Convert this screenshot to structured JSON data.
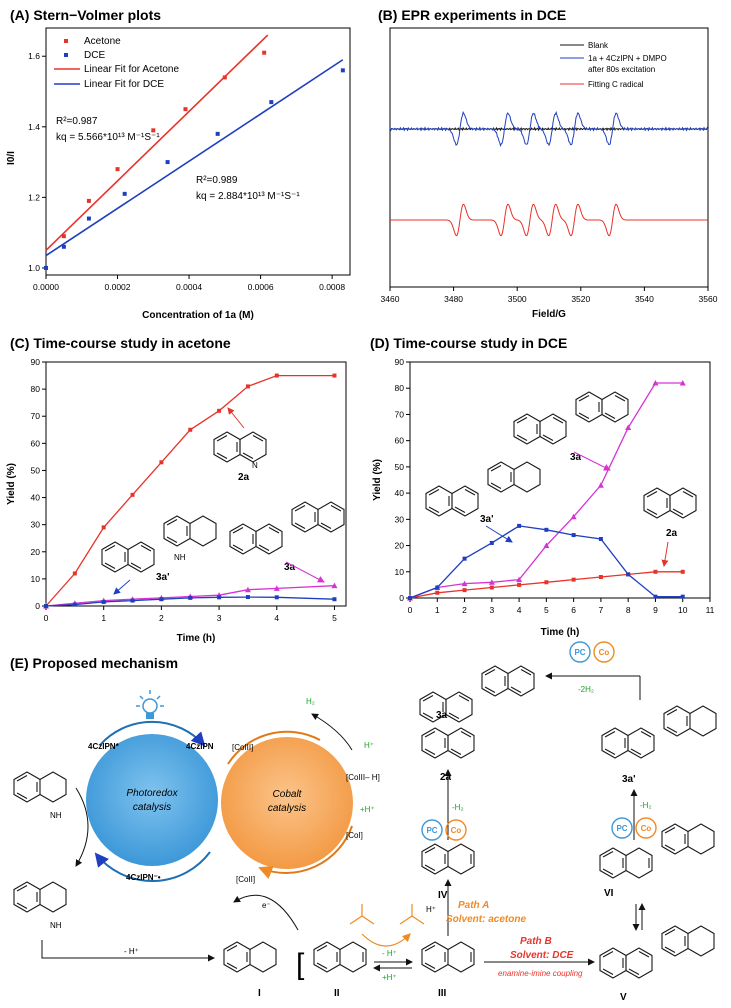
{
  "panels": {
    "a": {
      "title": "(A) Stern−Volmer plots"
    },
    "b": {
      "title": "(B) EPR experiments in DCE"
    },
    "c": {
      "title": "(C) Time-course study in acetone"
    },
    "d": {
      "title": "(D) Time-course study in DCE"
    },
    "e": {
      "title": "(E) Proposed mechanism"
    }
  },
  "chart_data": [
    {
      "id": "A",
      "type": "scatter",
      "xlabel": "Concentration of 1a (M)",
      "ylabel": "I0/I",
      "xlim": [
        0,
        0.00085
      ],
      "ylim": [
        0.98,
        1.68
      ],
      "xticks": [
        "0.0000",
        "0.0002",
        "0.0004",
        "0.0006",
        "0.0008"
      ],
      "yticks": [
        "1.0",
        "1.2",
        "1.4",
        "1.6"
      ],
      "legend": [
        "Acetone",
        "DCE",
        "Linear Fit for Acetone",
        "Linear Fit for DCE"
      ],
      "series": [
        {
          "name": "Acetone",
          "color": "#e8332b",
          "x": [
            0,
            5e-05,
            0.00012,
            0.0002,
            0.0003,
            0.00039,
            0.0005,
            0.00061
          ],
          "y": [
            1.0,
            1.09,
            1.19,
            1.28,
            1.39,
            1.45,
            1.54,
            1.61
          ]
        },
        {
          "name": "DCE",
          "color": "#1f3fbf",
          "x": [
            0,
            5e-05,
            0.00012,
            0.00022,
            0.00034,
            0.00048,
            0.00063,
            0.00083
          ],
          "y": [
            1.0,
            1.06,
            1.14,
            1.21,
            1.3,
            1.38,
            1.47,
            1.56
          ]
        }
      ],
      "fits": [
        {
          "name": "Linear Fit for Acetone",
          "color": "#e8332b",
          "x": [
            0,
            0.00062
          ],
          "y": [
            1.05,
            1.66
          ]
        },
        {
          "name": "Linear Fit for DCE",
          "color": "#1f3fbf",
          "x": [
            0,
            0.00083
          ],
          "y": [
            1.035,
            1.59
          ]
        }
      ],
      "annotations": {
        "acetone_r2": "R²=0.987",
        "acetone_kq": "kq = 5.566*10¹³ M⁻¹S⁻¹",
        "dce_r2": "R²=0.989",
        "dce_kq": "kq = 2.884*10¹³ M⁻¹S⁻¹"
      }
    },
    {
      "id": "B",
      "type": "line",
      "xlabel": "Field/G",
      "xlim": [
        3460,
        3560
      ],
      "xticks": [
        "3460",
        "3480",
        "3500",
        "3520",
        "3540",
        "3560"
      ],
      "legend": [
        "Blank",
        "1a + 4CzIPN + DMPO",
        "after 80s excitation",
        "Fitting C radical"
      ],
      "peak_fields": [
        3482,
        3496,
        3504,
        3511,
        3518,
        3530
      ],
      "series": [
        {
          "name": "Blank",
          "color": "#111111"
        },
        {
          "name": "1a + 4CzIPN + DMPO",
          "color": "#1f3fbf"
        },
        {
          "name": "Fitting C radical",
          "color": "#e8332b"
        }
      ]
    },
    {
      "id": "C",
      "type": "line",
      "xlabel": "Time (h)",
      "ylabel": "Yield (%)",
      "xlim": [
        0,
        5.2
      ],
      "ylim": [
        0,
        90
      ],
      "xticks": [
        "0",
        "1",
        "2",
        "3",
        "4",
        "5"
      ],
      "yticks": [
        "0",
        "10",
        "20",
        "30",
        "40",
        "50",
        "60",
        "70",
        "80",
        "90"
      ],
      "x": [
        0,
        0.5,
        1,
        1.5,
        2,
        2.5,
        3,
        3.5,
        4,
        5
      ],
      "series": [
        {
          "name": "2a",
          "color": "#e8332b",
          "marker": "square",
          "values": [
            0,
            12,
            29,
            41,
            53,
            65,
            72,
            81,
            85,
            85
          ]
        },
        {
          "name": "3a",
          "color": "#d633d6",
          "marker": "triangle",
          "values": [
            0,
            1,
            2,
            2.5,
            3,
            3.5,
            4,
            6,
            6.5,
            7.5
          ]
        },
        {
          "name": "3a'",
          "color": "#1f3fbf",
          "marker": "square",
          "values": [
            0,
            0.5,
            1.5,
            2,
            2.5,
            3,
            3.2,
            3.3,
            3.2,
            2.5
          ]
        }
      ],
      "labels": {
        "l2a": "2a",
        "l3a": "3a",
        "l3ap": "3a'"
      }
    },
    {
      "id": "D",
      "type": "line",
      "xlabel": "Time (h)",
      "ylabel": "Yield (%)",
      "xlim": [
        0,
        11
      ],
      "ylim": [
        0,
        90
      ],
      "xticks": [
        "0",
        "1",
        "2",
        "3",
        "4",
        "5",
        "6",
        "7",
        "8",
        "9",
        "10",
        "11"
      ],
      "yticks": [
        "0",
        "10",
        "20",
        "30",
        "40",
        "50",
        "60",
        "70",
        "80",
        "90"
      ],
      "x": [
        0,
        1,
        2,
        3,
        4,
        5,
        6,
        7,
        8,
        9,
        10
      ],
      "series": [
        {
          "name": "2a",
          "color": "#e8332b",
          "marker": "square",
          "values": [
            0,
            2,
            3,
            4,
            5,
            6,
            7,
            8,
            9,
            10,
            10
          ]
        },
        {
          "name": "3a",
          "color": "#d633d6",
          "marker": "triangle",
          "values": [
            0,
            4,
            5.5,
            6,
            7,
            20,
            31,
            43,
            65,
            82,
            82
          ]
        },
        {
          "name": "3a'",
          "color": "#1f3fbf",
          "marker": "square",
          "values": [
            0,
            4,
            15,
            21,
            27.5,
            26,
            24,
            22.5,
            9,
            0.5,
            0.5
          ]
        }
      ],
      "labels": {
        "l2a": "2a",
        "l3a": "3a",
        "l3ap": "3a'"
      }
    }
  ],
  "mechanism": {
    "photoredox_label_1": "Photoredox",
    "photoredox_label_2": "catalysis",
    "cobalt_label_1": "Cobalt",
    "cobalt_label_2": "catalysis",
    "czipn_star": "4CzIPN*",
    "czipn": "4CzIPN",
    "czipn_radical": "4CzIPN⁻•",
    "co3": "[CoIII]",
    "co3h": "[CoIII– H]",
    "co1": "[CoI]",
    "co2": "[CoII]",
    "h2": "H₂",
    "hplus_top": "H⁺",
    "hplus_mid": "+H⁺",
    "eminus": "e⁻",
    "minus_hplus": "- H⁺",
    "label_I": "I",
    "label_II": "II",
    "label_III": "III",
    "label_IV": "IV",
    "label_V": "V",
    "label_VI": "VI",
    "label_2a": "2a",
    "label_3a": "3a",
    "label_3ap": "3a'",
    "minus_h2": "-H₂",
    "minus_2h2": "-2H₂",
    "pc": "PC",
    "co": "Co",
    "hplus_acid": "H⁺",
    "eq_minus_h": "- H⁺",
    "eq_plus_h": "+H⁺",
    "path_a": "Path A",
    "path_a_solvent": "Solvent: acetone",
    "path_b": "Path B",
    "path_b_solvent": "Solvent: DCE",
    "coupling": "enamine-imine coupling",
    "nh": "NH",
    "n": "N",
    "h": "H"
  }
}
